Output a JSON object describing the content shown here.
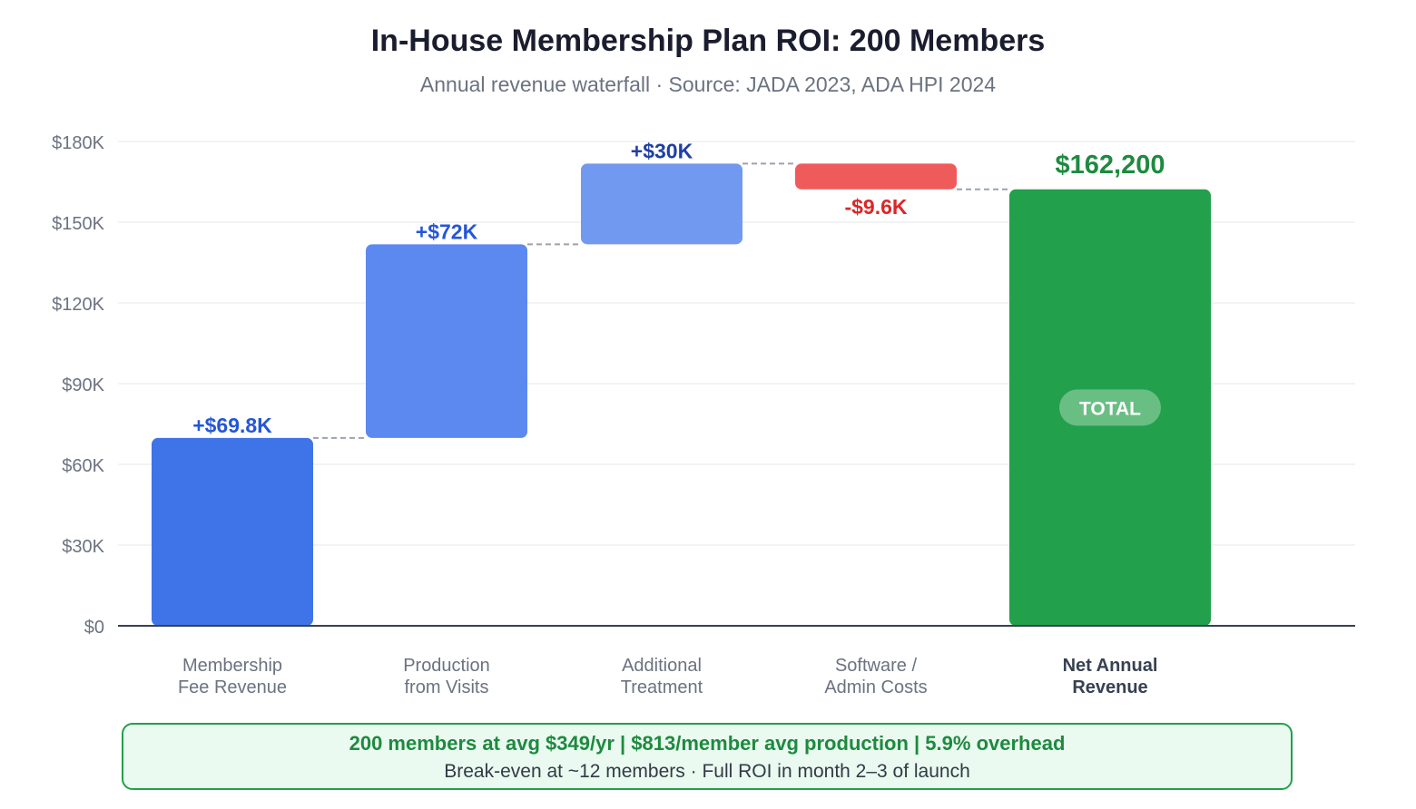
{
  "title": "In-House Membership Plan ROI: 200 Members",
  "subtitle": "Annual revenue waterfall · Source: JADA 2023, ADA HPI 2024",
  "colors": {
    "increase_dark": "#3f74e8",
    "increase_mid": "#5b89f0",
    "increase_light": "#7199ef",
    "decrease": "#ef5b5b",
    "total": "#22a04b",
    "label_blue_dark": "#1f3fa6",
    "label_blue": "#2456d8",
    "label_red": "#dc2626",
    "label_green": "#1e8a3f",
    "grid": "#e5e7eb",
    "axis": "#374151",
    "tick_text": "#6b7280"
  },
  "chart_data": {
    "type": "waterfall",
    "title": "In-House Membership Plan ROI: 200 Members",
    "subtitle": "Annual revenue waterfall · Source: JADA 2023, ADA HPI 2024",
    "ylim": [
      0,
      180000
    ],
    "yticks": [
      {
        "value": 0,
        "label": "$0"
      },
      {
        "value": 30000,
        "label": "$30K"
      },
      {
        "value": 60000,
        "label": "$60K"
      },
      {
        "value": 90000,
        "label": "$90K"
      },
      {
        "value": 120000,
        "label": "$120K"
      },
      {
        "value": 150000,
        "label": "$150K"
      },
      {
        "value": 180000,
        "label": "$180K"
      }
    ],
    "grid": true,
    "steps": [
      {
        "category": [
          "Membership",
          "Fee Revenue"
        ],
        "value": 69800,
        "label": "+$69.8K",
        "kind": "increase",
        "color": "#3f74e8",
        "label_color": "#2456d8"
      },
      {
        "category": [
          "Production",
          "from Visits"
        ],
        "value": 72000,
        "label": "+$72K",
        "kind": "increase",
        "color": "#5b89f0",
        "label_color": "#2456d8"
      },
      {
        "category": [
          "Additional",
          "Treatment"
        ],
        "value": 30000,
        "label": "+$30K",
        "kind": "increase",
        "color": "#7199ef",
        "label_color": "#1f3fa6"
      },
      {
        "category": [
          "Software /",
          "Admin Costs"
        ],
        "value": -9600,
        "label": "-$9.6K",
        "kind": "decrease",
        "color": "#ef5b5b",
        "label_color": "#dc2626"
      },
      {
        "category": [
          "Net Annual",
          "Revenue"
        ],
        "value": 162200,
        "label": "$162,200",
        "kind": "total",
        "badge": "TOTAL",
        "color": "#22a04b",
        "label_color": "#1e8a3f"
      }
    ]
  },
  "callout": {
    "line1": "200 members at avg $349/yr | $813/member avg production | 5.9% overhead",
    "line2": "Break-even at ~12 members · Full ROI in month 2–3 of launch"
  }
}
